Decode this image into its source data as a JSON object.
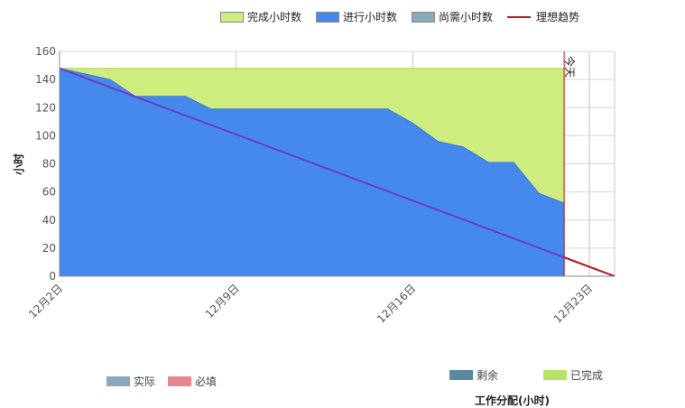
{
  "legend_top": [
    {
      "label": "完成小时数",
      "color": "#cfec7e",
      "kind": "area"
    },
    {
      "label": "进行小时数",
      "color": "#4689ed",
      "kind": "area"
    },
    {
      "label": "尚需小时数",
      "color": "#8ba9bc",
      "kind": "area"
    },
    {
      "label": "理想趋势",
      "color": "#c01818",
      "kind": "line"
    }
  ],
  "legend_bottom_left": [
    {
      "label": "实际",
      "color": "#8ba9bc"
    },
    {
      "label": "必填",
      "color": "#e8868d"
    }
  ],
  "legend_bottom_right": [
    {
      "label": "剩余",
      "color": "#5a88a2"
    },
    {
      "label": "已完成",
      "color": "#b7e26a"
    }
  ],
  "bottom_cut_title": "工作分配(小时)",
  "today_marker": "今天",
  "chart_data": {
    "type": "area",
    "ylabel": "小时",
    "ylim": [
      0,
      160
    ],
    "yticks": [
      0,
      20,
      40,
      60,
      80,
      100,
      120,
      140,
      160
    ],
    "xlim": [
      "12月2日",
      "12月24日"
    ],
    "xtick_labels": [
      "12月2日",
      "12月9日",
      "12月16日",
      "12月23日"
    ],
    "grid": true,
    "legend_position": "top",
    "series": [
      {
        "name": "完成小时数",
        "color": "#cfec7e",
        "x": [
          "12月2日",
          "12月22日"
        ],
        "values": [
          148,
          148
        ]
      },
      {
        "name": "进行小时数",
        "color": "#4689ed",
        "x": [
          "12月2日",
          "12月4日",
          "12月5日",
          "12月6日",
          "12月7日",
          "12月8日",
          "12月9日",
          "12月10日",
          "12月11日",
          "12月12日",
          "12月13日",
          "12月14日",
          "12月15日",
          "12月16日",
          "12月17日",
          "12月18日",
          "12月19日",
          "12月20日",
          "12月21日",
          "12月22日"
        ],
        "values": [
          148,
          140,
          128,
          128,
          128,
          119,
          119,
          119,
          119,
          119,
          119,
          119,
          119,
          109,
          96,
          92,
          81,
          81,
          59,
          52
        ]
      },
      {
        "name": "理想趋势",
        "color": "#c01818",
        "x": [
          "12月2日",
          "12月24日"
        ],
        "values": [
          148,
          0
        ]
      }
    ],
    "today": "12月22日"
  }
}
